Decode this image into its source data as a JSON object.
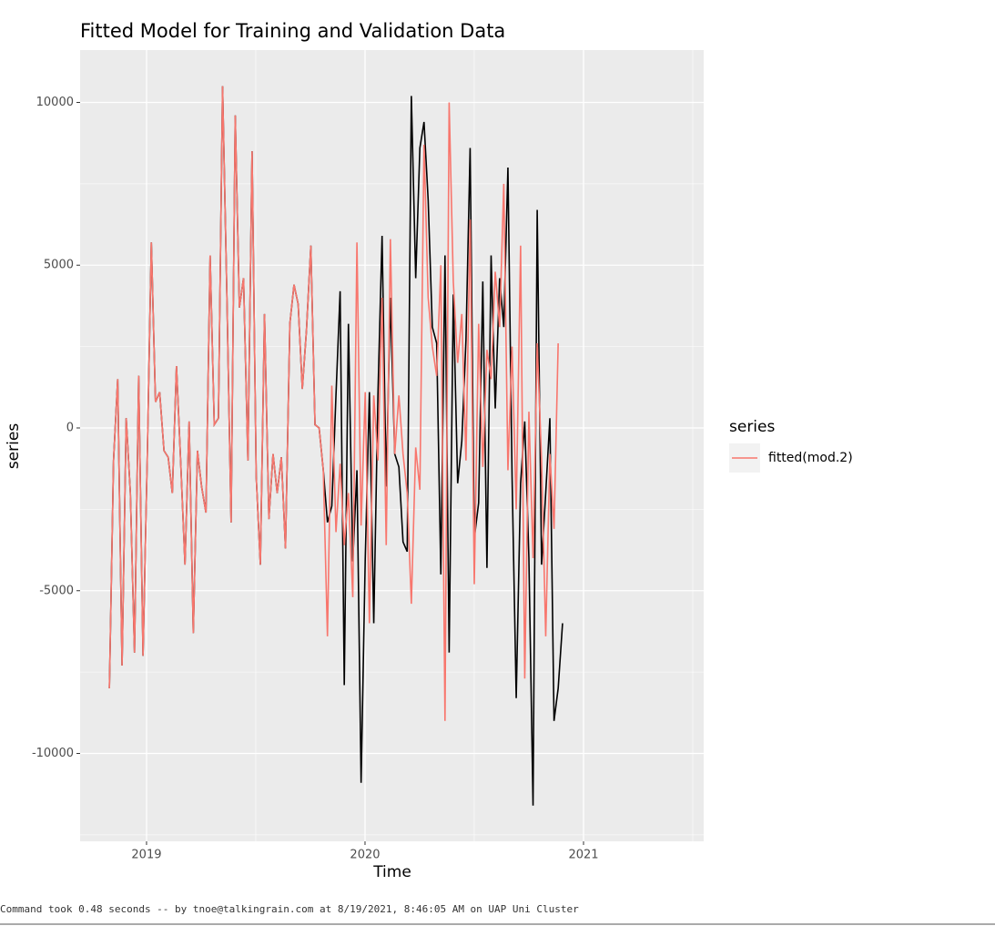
{
  "chart_data": {
    "type": "line",
    "title": "Fitted Model for Training and Validation Data",
    "x_label": "Time",
    "y_label": "series",
    "legend_title": "series",
    "x": [
      2018.83,
      2018.849,
      2018.868,
      2018.888,
      2018.907,
      2018.926,
      2018.945,
      2018.964,
      2018.984,
      2019.003,
      2019.022,
      2019.041,
      2019.06,
      2019.08,
      2019.099,
      2019.118,
      2019.137,
      2019.156,
      2019.176,
      2019.195,
      2019.214,
      2019.233,
      2019.252,
      2019.272,
      2019.291,
      2019.31,
      2019.329,
      2019.348,
      2019.368,
      2019.387,
      2019.406,
      2019.425,
      2019.444,
      2019.464,
      2019.483,
      2019.502,
      2019.521,
      2019.54,
      2019.56,
      2019.579,
      2019.598,
      2019.617,
      2019.636,
      2019.656,
      2019.675,
      2019.694,
      2019.713,
      2019.732,
      2019.752,
      2019.771,
      2019.79,
      2019.809,
      2019.828,
      2019.848,
      2019.867,
      2019.886,
      2019.905,
      2019.924,
      2019.944,
      2019.963,
      2019.982,
      2020.001,
      2020.02,
      2020.04,
      2020.059,
      2020.078,
      2020.097,
      2020.116,
      2020.136,
      2020.155,
      2020.174,
      2020.193,
      2020.212,
      2020.232,
      2020.251,
      2020.27,
      2020.289,
      2020.308,
      2020.328,
      2020.347,
      2020.366,
      2020.385,
      2020.404,
      2020.424,
      2020.443,
      2020.462,
      2020.481,
      2020.5,
      2020.52,
      2020.539,
      2020.558,
      2020.577,
      2020.596,
      2020.616,
      2020.635,
      2020.654,
      2020.673,
      2020.692,
      2020.712,
      2020.731,
      2020.75,
      2020.769,
      2020.788,
      2020.808,
      2020.827,
      2020.846,
      2020.865,
      2020.884,
      2020.904
    ],
    "series": [
      {
        "color": "#000000",
        "values": [
          -8000,
          -1000,
          1500,
          -7300,
          300,
          -2000,
          -6900,
          1600,
          -7000,
          -1000,
          5700,
          800,
          1100,
          -700,
          -900,
          -2000,
          1900,
          -1000,
          -4200,
          200,
          -6300,
          -700,
          -1800,
          -2600,
          5300,
          100,
          300,
          10500,
          4000,
          -2900,
          9600,
          3700,
          4600,
          -1000,
          8500,
          -1500,
          -4200,
          3500,
          -2800,
          -800,
          -2000,
          -900,
          -3700,
          3200,
          4400,
          3800,
          1200,
          3000,
          5600,
          100,
          0,
          -1300,
          -2900,
          -2400,
          1000,
          4200,
          -7900,
          3200,
          -4100,
          -1300,
          -10900,
          -4000,
          1100,
          -6000,
          1000,
          5900,
          -1800,
          4000,
          -800,
          -1200,
          -3500,
          -3800,
          10200,
          4600,
          8600,
          9400,
          7000,
          3100,
          2600,
          -4500,
          5300,
          -6900,
          4100,
          -1700,
          -400,
          2700,
          8600,
          -3400,
          -2300,
          4500,
          -4300,
          5300,
          600,
          4600,
          3100,
          8000,
          -1500,
          -8300,
          -1700,
          200,
          -4000,
          -11600,
          6700,
          -4200,
          -2000,
          300,
          -9000,
          -8000,
          -6000
        ]
      },
      {
        "name": "fitted(mod.2)",
        "color": "#F8766D",
        "values": [
          -8000,
          -1000,
          1500,
          -7300,
          300,
          -2000,
          -6900,
          1600,
          -7000,
          -1000,
          5700,
          800,
          1100,
          -700,
          -900,
          -2000,
          1900,
          -1000,
          -4200,
          200,
          -6300,
          -700,
          -1800,
          -2600,
          5300,
          100,
          300,
          10500,
          4000,
          -2900,
          9600,
          3700,
          4600,
          -1000,
          8500,
          -1500,
          -4200,
          3500,
          -2800,
          -800,
          -2000,
          -900,
          -3700,
          3200,
          4400,
          3800,
          1200,
          3000,
          5600,
          100,
          0,
          -1300,
          -6400,
          1300,
          -3200,
          -1100,
          -3600,
          -2000,
          -5200,
          5700,
          -3000,
          1100,
          -6000,
          1000,
          -1000,
          4000,
          -3600,
          5800,
          -800,
          1000,
          -800,
          -2000,
          -5400,
          -600,
          -1900,
          8700,
          4000,
          2500,
          1600,
          5000,
          -9000,
          10000,
          4500,
          2000,
          3500,
          -1000,
          6400,
          -4800,
          3200,
          -1200,
          2400,
          1500,
          4800,
          3100,
          7500,
          -1300,
          2500,
          -2500,
          5600,
          -7700,
          500,
          -4000,
          2600,
          -1000,
          -6400,
          -800,
          -3100,
          2600,
          null
        ]
      }
    ],
    "xlim": [
      2018.696,
      2021.55
    ],
    "xticks": [
      2019,
      2020,
      2021
    ],
    "ylim": [
      -12699,
      11608
    ],
    "yticks": [
      -10000,
      -5000,
      0,
      5000,
      10000
    ],
    "grid": true
  },
  "footer": "Command took 0.48 seconds -- by tnoe@talkingrain.com at 8/19/2021, 8:46:05 AM on UAP Uni Cluster"
}
